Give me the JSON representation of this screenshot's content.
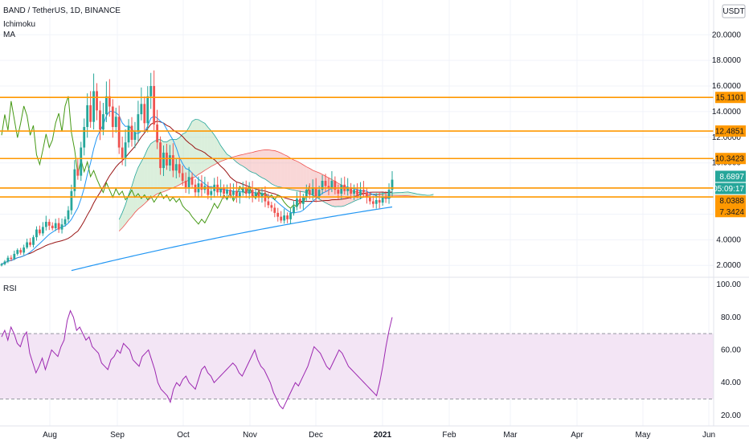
{
  "header": {
    "title": "BAND / TetherUS, 1D, BINANCE",
    "indicators": [
      "Ichimoku",
      "MA"
    ],
    "currency_button": "USDT",
    "rsi_label": "RSI"
  },
  "colors": {
    "up": "#26a69a",
    "down": "#ef5350",
    "hline": "#ff9800",
    "ma": "#2196f3",
    "ichimoku_conversion": "#2196f3",
    "ichimoku_base": "#991515",
    "ichimoku_lagging": "#459915",
    "cloud_bull": "#a5d6a7",
    "cloud_bear": "#ef9a9a",
    "rsi_line": "#9c27b0",
    "rsi_band": "#f3e5f5"
  },
  "chart_data": [
    {
      "type": "candlestick",
      "title": "BAND / TetherUS, 1D, BINANCE",
      "x_ticks": [
        "Aug",
        "Sep",
        "Oct",
        "Nov",
        "Dec",
        "2021",
        "Feb",
        "Mar",
        "Apr",
        "May",
        "Jun"
      ],
      "y_ticks": [
        "2.0000",
        "4.0000",
        "6.0000",
        "8.0000",
        "10.0000",
        "12.0000",
        "14.0000",
        "16.0000",
        "18.0000",
        "20.0000"
      ],
      "ylim": [
        1.2,
        22.4
      ],
      "horizontal_lines": [
        15.1101,
        12.4851,
        10.3423,
        8.0388,
        7.3424
      ],
      "price_tags": [
        {
          "value": "15.1101",
          "kind": "hline"
        },
        {
          "value": "12.4851",
          "kind": "hline"
        },
        {
          "value": "10.3423",
          "kind": "hline"
        },
        {
          "value": "8.6897",
          "kind": "last"
        },
        {
          "value": "05:09:17",
          "kind": "countdown"
        },
        {
          "value": "8.0388",
          "kind": "hline"
        },
        {
          "value": "7.3424",
          "kind": "hline"
        }
      ],
      "last_price": 8.6897,
      "series_approx": {
        "close": [
          2.1,
          2.3,
          2.6,
          2.5,
          2.9,
          3.2,
          3.0,
          3.4,
          3.8,
          3.6,
          4.2,
          4.8,
          4.5,
          5.0,
          5.4,
          5.1,
          4.9,
          5.3,
          4.8,
          5.2,
          5.6,
          6.3,
          7.8,
          9.5,
          9.0,
          11.2,
          12.8,
          14.5,
          13.2,
          15.6,
          14.1,
          12.6,
          13.8,
          15.2,
          14.4,
          12.8,
          13.6,
          11.2,
          10.4,
          11.6,
          12.9,
          11.8,
          12.4,
          13.8,
          14.6,
          13.1,
          15.2,
          16.0,
          13.0,
          11.6,
          9.6,
          10.8,
          9.8,
          10.6,
          9.4,
          9.9,
          9.2,
          8.6,
          8.1,
          8.9,
          8.3,
          7.7,
          8.4,
          7.9,
          8.2,
          7.5,
          7.8,
          8.3,
          7.7,
          8.0,
          7.6,
          7.9,
          7.5,
          7.8,
          7.3,
          7.7,
          8.1,
          7.6,
          7.9,
          7.4,
          7.7,
          7.3,
          7.6,
          7.0,
          6.7,
          6.5,
          6.1,
          5.8,
          5.5,
          5.9,
          5.6,
          6.1,
          6.6,
          7.2,
          6.8,
          7.3,
          7.9,
          7.5,
          8.1,
          7.4,
          7.9,
          8.6,
          8.2,
          8.0,
          8.6,
          7.9,
          7.6,
          8.3,
          7.8,
          8.1,
          7.6,
          7.9,
          7.5,
          7.9,
          7.7,
          7.3,
          7.0,
          6.8,
          7.1,
          6.9,
          7.4,
          7.2,
          7.9,
          8.69
        ],
        "rsi": [
          68,
          72,
          66,
          74,
          70,
          64,
          62,
          68,
          71,
          58,
          52,
          46,
          50,
          55,
          48,
          54,
          60,
          58,
          56,
          62,
          66,
          78,
          84,
          80,
          72,
          74,
          70,
          66,
          68,
          62,
          60,
          58,
          52,
          50,
          48,
          54,
          56,
          60,
          58,
          64,
          62,
          60,
          54,
          52,
          50,
          56,
          58,
          60,
          54,
          48,
          40,
          36,
          34,
          32,
          28,
          36,
          40,
          38,
          42,
          44,
          40,
          38,
          36,
          42,
          48,
          50,
          46,
          44,
          40,
          42,
          44,
          46,
          48,
          50,
          52,
          50,
          46,
          44,
          48,
          52,
          56,
          60,
          54,
          50,
          48,
          44,
          40,
          34,
          30,
          26,
          24,
          28,
          32,
          36,
          40,
          38,
          42,
          46,
          50,
          56,
          62,
          60,
          58,
          54,
          50,
          48,
          52,
          56,
          60,
          58,
          54,
          50,
          48,
          46,
          44,
          42,
          40,
          38,
          36,
          34,
          32,
          40,
          50,
          62,
          72,
          80
        ]
      }
    },
    {
      "type": "line",
      "title": "RSI",
      "y_ticks": [
        "20.00",
        "40.00",
        "60.00",
        "80.00",
        "100.00"
      ],
      "ylim": [
        14,
        104
      ],
      "band": [
        30,
        70
      ]
    }
  ]
}
